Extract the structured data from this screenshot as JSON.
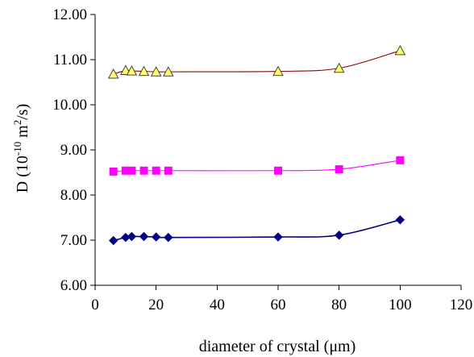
{
  "chart_data": {
    "type": "line",
    "xlabel": "diameter of crystal (μm)",
    "ylabel": {
      "base": "D (10",
      "exp1": "-10",
      "mid": " m",
      "exp2": "2",
      "end": "/s)"
    },
    "xlim": [
      0,
      120
    ],
    "ylim": [
      6,
      12
    ],
    "x_ticks": [
      "0",
      "20",
      "40",
      "60",
      "80",
      "100",
      "120"
    ],
    "y_ticks": [
      "6.00",
      "7.00",
      "8.00",
      "9.00",
      "10.00",
      "11.00",
      "12.00"
    ],
    "grid": false,
    "legend": "none",
    "smoothed_lines": true,
    "series": [
      {
        "marker": "triangle",
        "marker_color": "#ffff66",
        "marker_edge": "#444444",
        "line_color": "#8b0000",
        "points": [
          [
            6,
            10.68
          ],
          [
            10,
            10.76
          ],
          [
            12,
            10.75
          ],
          [
            16,
            10.74
          ],
          [
            20,
            10.73
          ],
          [
            24,
            10.73
          ],
          [
            60,
            10.74
          ],
          [
            80,
            10.81
          ],
          [
            100,
            11.2
          ]
        ]
      },
      {
        "marker": "square",
        "marker_color": "#ff00ff",
        "marker_edge": "#ff00ff",
        "line_color": "#ff00ff",
        "points": [
          [
            6,
            8.52
          ],
          [
            10,
            8.54
          ],
          [
            12,
            8.54
          ],
          [
            16,
            8.54
          ],
          [
            20,
            8.54
          ],
          [
            24,
            8.54
          ],
          [
            60,
            8.54
          ],
          [
            80,
            8.57
          ],
          [
            100,
            8.77
          ]
        ]
      },
      {
        "marker": "diamond",
        "marker_color": "#000080",
        "marker_edge": "#000080",
        "line_color": "#000080",
        "points": [
          [
            6,
            6.99
          ],
          [
            10,
            7.06
          ],
          [
            12,
            7.08
          ],
          [
            16,
            7.08
          ],
          [
            20,
            7.07
          ],
          [
            24,
            7.06
          ],
          [
            60,
            7.07
          ],
          [
            80,
            7.11
          ],
          [
            100,
            7.45
          ]
        ]
      }
    ]
  }
}
